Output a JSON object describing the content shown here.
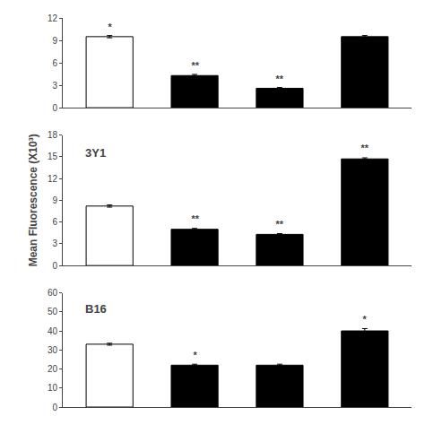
{
  "chart_data": [
    {
      "type": "bar",
      "categories": [
        null,
        null,
        null,
        null
      ],
      "values": [
        9.5,
        4.3,
        2.6,
        9.5
      ],
      "errors": [
        0.15,
        0.15,
        0.1,
        0.15
      ],
      "colors": [
        "white",
        "black",
        "black",
        "black"
      ],
      "annotations": [
        "*",
        "**",
        "**",
        null
      ],
      "ylim": [
        0,
        12
      ],
      "yticks": [
        0,
        3,
        6,
        9,
        12
      ],
      "grid": false,
      "tick_labels": "y"
    },
    {
      "type": "bar",
      "title": "3Y1",
      "ylabel": "Mean Fluorescence (X10³)",
      "categories": [
        null,
        null,
        null,
        null
      ],
      "values": [
        8.2,
        5.0,
        4.3,
        14.7
      ],
      "errors": [
        0.15,
        0.12,
        0.1,
        0.15
      ],
      "colors": [
        "white",
        "black",
        "black",
        "black"
      ],
      "annotations": [
        null,
        "**",
        "**",
        "**"
      ],
      "ylim": [
        0,
        18
      ],
      "yticks": [
        0,
        3,
        6,
        9,
        12,
        15,
        18
      ],
      "grid": false,
      "tick_labels": "y"
    },
    {
      "type": "bar",
      "title": "B16",
      "categories": [
        null,
        null,
        null,
        null
      ],
      "values": [
        33.0,
        22.0,
        22.0,
        40.0
      ],
      "errors": [
        0.5,
        0.5,
        0.5,
        1.2
      ],
      "colors": [
        "white",
        "black",
        "black",
        "black"
      ],
      "annotations": [
        null,
        "*",
        null,
        "*"
      ],
      "ylim": [
        0,
        60
      ],
      "yticks": [
        0,
        10,
        20,
        30,
        40,
        50,
        60
      ],
      "grid": false,
      "tick_labels": "y"
    }
  ]
}
